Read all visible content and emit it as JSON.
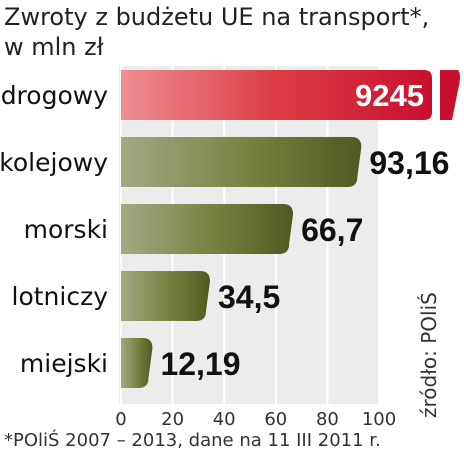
{
  "chart_data": {
    "type": "bar",
    "orientation": "horizontal",
    "title_lines": [
      "Zwroty z budżetu UE na transport*,",
      "w mln zł"
    ],
    "categories": [
      "drogowy",
      "kolejowy",
      "morski",
      "lotniczy",
      "miejski"
    ],
    "values": [
      9245,
      93.16,
      66.7,
      34.5,
      12.19
    ],
    "value_labels": [
      "9245",
      "93,16",
      "66,7",
      "34,5",
      "12,19"
    ],
    "axis_ticks": [
      "0",
      "20",
      "40",
      "60",
      "80",
      "100"
    ],
    "xlim": [
      0,
      100
    ],
    "axis_break": "drogowy bar exceeds scale (cut)",
    "grid": true,
    "colors": {
      "highlight": "#d2232a",
      "bar": "#5f6a2e",
      "bar_light": "#8f9868",
      "panel": "#ececec"
    }
  },
  "source": "źródło: POliŚ",
  "footnote": "*POliŚ 2007 – 2013, dane na 11 III 2011 r."
}
